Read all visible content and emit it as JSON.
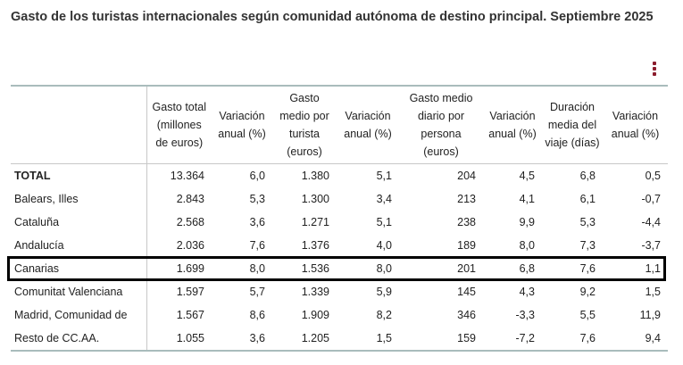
{
  "title": "Gasto de los turistas internacionales según comunidad autónoma de destino principal. Septiembre 2025",
  "menu_icon": "kebab-vertical-icon",
  "accent_color": "#8b1c2c",
  "highlighted_row": "Canarias",
  "columns": [
    "",
    "Gasto total (millones de euros)",
    "Variación anual (%)",
    "Gasto medio por turista (euros)",
    "Variación anual (%)",
    "Gasto medio diario por persona (euros)",
    "Variación anual (%)",
    "Duración media del viaje (días)",
    "Variación anual (%)"
  ],
  "rows": [
    [
      "TOTAL",
      "13.364",
      "6,0",
      "1.380",
      "5,1",
      "204",
      "4,5",
      "6,8",
      "0,5"
    ],
    [
      "Balears, Illes",
      "2.843",
      "5,3",
      "1.300",
      "3,4",
      "213",
      "4,1",
      "6,1",
      "-0,7"
    ],
    [
      "Cataluña",
      "2.568",
      "3,6",
      "1.271",
      "5,1",
      "238",
      "9,9",
      "5,3",
      "-4,4"
    ],
    [
      "Andalucía",
      "2.036",
      "7,6",
      "1.376",
      "4,0",
      "189",
      "8,0",
      "7,3",
      "-3,7"
    ],
    [
      "Canarias",
      "1.699",
      "8,0",
      "1.536",
      "8,0",
      "201",
      "6,8",
      "7,6",
      "1,1"
    ],
    [
      "Comunitat Valenciana",
      "1.597",
      "5,7",
      "1.339",
      "5,9",
      "145",
      "4,3",
      "9,2",
      "1,5"
    ],
    [
      "Madrid, Comunidad de",
      "1.567",
      "8,6",
      "1.909",
      "8,2",
      "346",
      "-3,3",
      "5,5",
      "11,9"
    ],
    [
      "Resto de CC.AA.",
      "1.055",
      "3,6",
      "1.205",
      "1,5",
      "159",
      "-7,2",
      "7,6",
      "9,4"
    ]
  ]
}
